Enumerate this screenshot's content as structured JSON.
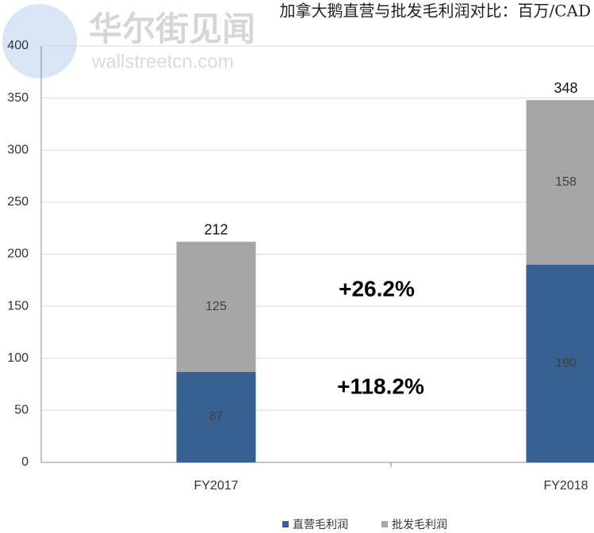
{
  "chart_data": {
    "type": "bar",
    "stacked": true,
    "title": "加拿大鹅直营与批发毛利润对比：百万/CAD",
    "watermark": {
      "name": "华尔街见闻",
      "url": "wallstreetcn.com"
    },
    "categories": [
      "FY2017",
      "FY2018"
    ],
    "series": [
      {
        "name": "直营毛利润",
        "color": "#375f8f",
        "values": [
          87,
          190
        ]
      },
      {
        "name": "批发毛利润",
        "color": "#a6a6a6",
        "values": [
          125,
          158
        ]
      }
    ],
    "totals": [
      212,
      348
    ],
    "annotations": [
      "+26.2%",
      "+118.2%"
    ],
    "ylim": [
      0,
      400
    ],
    "yticks": [
      0,
      50,
      100,
      150,
      200,
      250,
      300,
      350,
      400
    ],
    "grid": true
  }
}
